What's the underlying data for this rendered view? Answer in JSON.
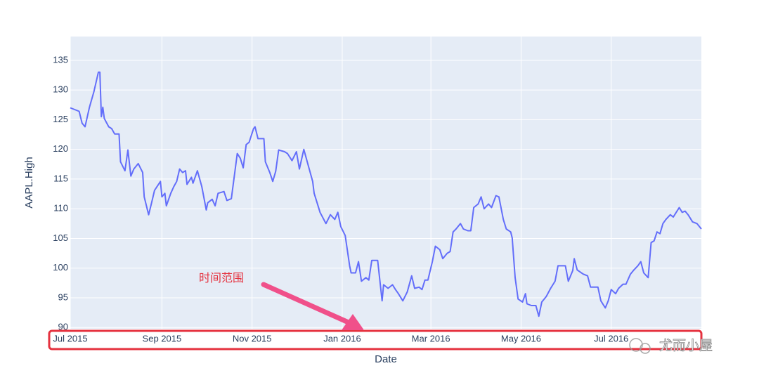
{
  "chart_data": {
    "type": "line",
    "x_label": "Date",
    "y_label": "AAPL.High",
    "annotation": "时间范围",
    "watermark": "尤而小屋",
    "color": "#636efa",
    "background": "#e5ecf6",
    "grid": true,
    "xlim": [
      "2015-07-01",
      "2016-08-31"
    ],
    "xticks": [
      {
        "value": "2015-07-01",
        "label": "Jul 2015"
      },
      {
        "value": "2015-09-01",
        "label": "Sep 2015"
      },
      {
        "value": "2015-11-01",
        "label": "Nov 2015"
      },
      {
        "value": "2016-01-01",
        "label": "Jan 2016"
      },
      {
        "value": "2016-03-01",
        "label": "Mar 2016"
      },
      {
        "value": "2016-05-01",
        "label": "May 2016"
      },
      {
        "value": "2016-07-01",
        "label": "Jul 2016"
      }
    ],
    "ylim": [
      89.8,
      139
    ],
    "yticks": [
      90,
      95,
      100,
      105,
      110,
      115,
      120,
      125,
      130,
      135
    ],
    "x": [
      "2015-07-01",
      "2015-07-07",
      "2015-07-09",
      "2015-07-11",
      "2015-07-14",
      "2015-07-17",
      "2015-07-20",
      "2015-07-21",
      "2015-07-22",
      "2015-07-23",
      "2015-07-24",
      "2015-07-27",
      "2015-07-29",
      "2015-07-31",
      "2015-08-03",
      "2015-08-04",
      "2015-08-07",
      "2015-08-09",
      "2015-08-11",
      "2015-08-13",
      "2015-08-16",
      "2015-08-19",
      "2015-08-20",
      "2015-08-23",
      "2015-08-25",
      "2015-08-27",
      "2015-08-31",
      "2015-09-01",
      "2015-09-03",
      "2015-09-04",
      "2015-09-07",
      "2015-09-09",
      "2015-09-11",
      "2015-09-13",
      "2015-09-15",
      "2015-09-17",
      "2015-09-18",
      "2015-09-21",
      "2015-09-22",
      "2015-09-25",
      "2015-09-28",
      "2015-10-01",
      "2015-10-02",
      "2015-10-05",
      "2015-10-07",
      "2015-10-09",
      "2015-10-13",
      "2015-10-15",
      "2015-10-18",
      "2015-10-20",
      "2015-10-22",
      "2015-10-24",
      "2015-10-26",
      "2015-10-28",
      "2015-10-30",
      "2015-11-02",
      "2015-11-03",
      "2015-11-05",
      "2015-11-09",
      "2015-11-10",
      "2015-11-13",
      "2015-11-15",
      "2015-11-17",
      "2015-11-19",
      "2015-11-23",
      "2015-11-25",
      "2015-11-28",
      "2015-12-01",
      "2015-12-03",
      "2015-12-06",
      "2015-12-09",
      "2015-12-12",
      "2015-12-13",
      "2015-12-15",
      "2015-12-17",
      "2015-12-21",
      "2015-12-24",
      "2015-12-27",
      "2015-12-29",
      "2015-12-31",
      "2016-01-03",
      "2016-01-06",
      "2016-01-07",
      "2016-01-10",
      "2016-01-12",
      "2016-01-14",
      "2016-01-17",
      "2016-01-19",
      "2016-01-21",
      "2016-01-25",
      "2016-01-28",
      "2016-01-29",
      "2016-02-01",
      "2016-02-04",
      "2016-02-06",
      "2016-02-08",
      "2016-02-11",
      "2016-02-14",
      "2016-02-17",
      "2016-02-19",
      "2016-02-22",
      "2016-02-24",
      "2016-02-26",
      "2016-02-28",
      "2016-03-02",
      "2016-03-04",
      "2016-03-07",
      "2016-03-09",
      "2016-03-12",
      "2016-03-14",
      "2016-03-16",
      "2016-03-18",
      "2016-03-21",
      "2016-03-23",
      "2016-03-26",
      "2016-03-28",
      "2016-03-30",
      "2016-04-02",
      "2016-04-04",
      "2016-04-06",
      "2016-04-09",
      "2016-04-11",
      "2016-04-14",
      "2016-04-16",
      "2016-04-19",
      "2016-04-21",
      "2016-04-24",
      "2016-04-25",
      "2016-04-27",
      "2016-04-29",
      "2016-05-02",
      "2016-05-04",
      "2016-05-05",
      "2016-05-08",
      "2016-05-11",
      "2016-05-13",
      "2016-05-15",
      "2016-05-18",
      "2016-05-21",
      "2016-05-24",
      "2016-05-26",
      "2016-05-29",
      "2016-05-31",
      "2016-06-02",
      "2016-06-05",
      "2016-06-06",
      "2016-06-08",
      "2016-06-12",
      "2016-06-15",
      "2016-06-17",
      "2016-06-21",
      "2016-06-22",
      "2016-06-24",
      "2016-06-27",
      "2016-06-29",
      "2016-07-01",
      "2016-07-04",
      "2016-07-06",
      "2016-07-09",
      "2016-07-11",
      "2016-07-14",
      "2016-07-16",
      "2016-07-19",
      "2016-07-21",
      "2016-07-23",
      "2016-07-26",
      "2016-07-28",
      "2016-07-30",
      "2016-08-01",
      "2016-08-03",
      "2016-08-05",
      "2016-08-07",
      "2016-08-10",
      "2016-08-12",
      "2016-08-14",
      "2016-08-16",
      "2016-08-18",
      "2016-08-20",
      "2016-08-22",
      "2016-08-25",
      "2016-08-28",
      "2016-08-31"
    ],
    "values": [
      127.0,
      126.4,
      124.4,
      123.8,
      127.1,
      129.7,
      133.0,
      133.0,
      125.5,
      127.1,
      125.2,
      123.8,
      123.5,
      122.6,
      122.6,
      117.9,
      116.4,
      119.9,
      115.5,
      116.7,
      117.6,
      116.1,
      112.0,
      109.0,
      111.0,
      113.1,
      114.6,
      112.0,
      112.6,
      110.5,
      112.6,
      113.7,
      114.6,
      116.7,
      116.1,
      116.4,
      114.1,
      115.3,
      114.3,
      116.4,
      113.7,
      109.8,
      111.0,
      111.6,
      110.5,
      112.6,
      112.9,
      111.4,
      111.7,
      115.5,
      119.3,
      118.5,
      116.9,
      120.8,
      121.2,
      123.5,
      123.8,
      121.8,
      121.8,
      117.9,
      116.1,
      114.6,
      116.3,
      119.9,
      119.6,
      119.3,
      118.1,
      119.6,
      116.7,
      120.0,
      117.3,
      114.6,
      112.6,
      111.0,
      109.4,
      107.5,
      109.0,
      108.2,
      109.4,
      107.0,
      105.5,
      100.4,
      99.2,
      99.2,
      101.1,
      97.8,
      98.4,
      98.0,
      101.3,
      101.3,
      94.5,
      97.2,
      96.6,
      97.2,
      96.4,
      95.7,
      94.5,
      96.0,
      98.7,
      96.6,
      96.8,
      96.4,
      98.0,
      98.0,
      101.1,
      103.7,
      103.1,
      101.6,
      102.5,
      102.8,
      106.1,
      106.6,
      107.5,
      106.6,
      106.3,
      106.3,
      110.2,
      110.8,
      112.0,
      110.0,
      110.8,
      110.2,
      112.2,
      112.0,
      108.2,
      106.6,
      106.1,
      105.1,
      98.4,
      94.8,
      94.3,
      95.7,
      94.0,
      93.7,
      93.7,
      91.9,
      94.3,
      95.2,
      96.6,
      97.8,
      100.4,
      100.4,
      100.4,
      97.8,
      99.6,
      101.6,
      99.7,
      99.0,
      98.7,
      96.8,
      96.8,
      96.8,
      94.5,
      93.3,
      94.5,
      96.4,
      95.7,
      96.6,
      97.3,
      97.3,
      99.0,
      99.6,
      100.4,
      101.1,
      99.2,
      98.4,
      104.3,
      104.6,
      106.1,
      105.8,
      107.5,
      108.2,
      109.0,
      108.6,
      109.4,
      110.2,
      109.4,
      109.6,
      109.0,
      107.8,
      107.5,
      106.6
    ]
  }
}
